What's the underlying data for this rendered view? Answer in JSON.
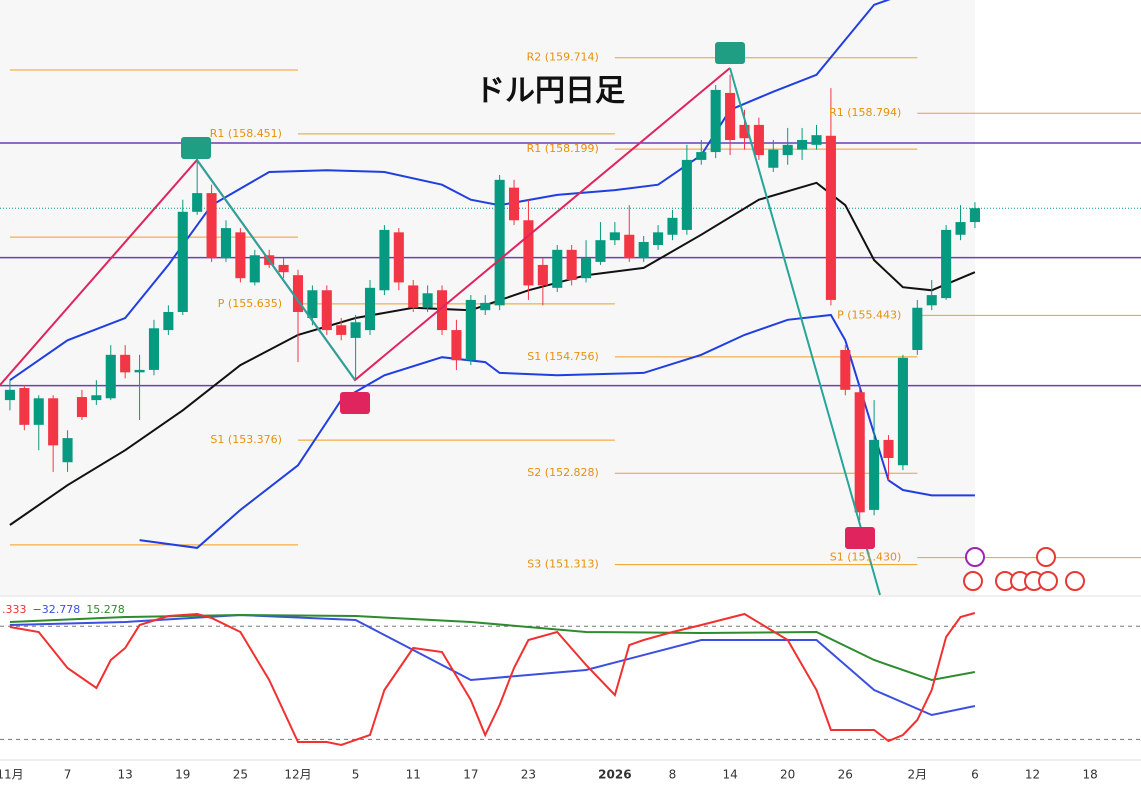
{
  "title": "ドル円日足",
  "chart_data": [
    {
      "type": "candlestick",
      "xlim": [
        -0.69,
        78.53
      ],
      "ylim": [
        150.81,
        160.67
      ],
      "up_color": "#089981",
      "down_color": "#f23645",
      "ohlc": [
        [
          154.04,
          154.37,
          153.87,
          154.21
        ],
        [
          154.24,
          154.29,
          153.54,
          153.63
        ],
        [
          153.63,
          154.12,
          153.21,
          154.07
        ],
        [
          154.07,
          154.12,
          152.85,
          153.29
        ],
        [
          153.01,
          153.54,
          152.85,
          153.41
        ],
        [
          154.09,
          154.21,
          153.71,
          153.76
        ],
        [
          154.04,
          154.37,
          153.96,
          154.12
        ],
        [
          154.07,
          154.95,
          154.04,
          154.79
        ],
        [
          154.79,
          154.95,
          154.4,
          154.5
        ],
        [
          154.5,
          154.79,
          153.71,
          154.54
        ],
        [
          154.54,
          155.37,
          154.45,
          155.23
        ],
        [
          155.2,
          155.61,
          155.12,
          155.5
        ],
        [
          155.5,
          157.36,
          155.45,
          157.16
        ],
        [
          157.16,
          158.02,
          157.11,
          157.47
        ],
        [
          157.47,
          157.61,
          156.33,
          156.39
        ],
        [
          156.39,
          157.02,
          156.33,
          156.89
        ],
        [
          156.82,
          156.89,
          155.99,
          156.06
        ],
        [
          155.99,
          156.53,
          155.94,
          156.44
        ],
        [
          156.44,
          156.53,
          156.23,
          156.28
        ],
        [
          156.28,
          156.39,
          156.06,
          156.16
        ],
        [
          156.11,
          156.2,
          154.67,
          155.5
        ],
        [
          155.4,
          155.94,
          155.28,
          155.86
        ],
        [
          155.86,
          155.94,
          155.12,
          155.2
        ],
        [
          155.28,
          155.4,
          155.03,
          155.12
        ],
        [
          155.07,
          155.45,
          154.37,
          155.33
        ],
        [
          155.2,
          156.03,
          155.12,
          155.9
        ],
        [
          155.86,
          156.94,
          155.78,
          156.86
        ],
        [
          156.82,
          156.89,
          155.86,
          155.99
        ],
        [
          155.94,
          156.03,
          155.5,
          155.57
        ],
        [
          155.57,
          155.94,
          155.5,
          155.81
        ],
        [
          155.86,
          155.94,
          155.12,
          155.2
        ],
        [
          155.2,
          155.37,
          154.54,
          154.7
        ],
        [
          154.7,
          155.78,
          154.62,
          155.7
        ],
        [
          155.53,
          155.78,
          155.45,
          155.65
        ],
        [
          155.61,
          157.77,
          155.53,
          157.69
        ],
        [
          157.56,
          157.69,
          156.94,
          157.02
        ],
        [
          157.02,
          157.36,
          155.7,
          155.94
        ],
        [
          156.28,
          156.39,
          155.61,
          155.94
        ],
        [
          155.9,
          156.61,
          155.83,
          156.53
        ],
        [
          156.53,
          156.61,
          155.94,
          156.03
        ],
        [
          156.06,
          156.69,
          155.99,
          156.39
        ],
        [
          156.33,
          156.99,
          156.28,
          156.69
        ],
        [
          156.69,
          156.99,
          156.61,
          156.82
        ],
        [
          156.78,
          157.27,
          156.33,
          156.39
        ],
        [
          156.39,
          156.76,
          156.33,
          156.66
        ],
        [
          156.61,
          156.94,
          156.53,
          156.82
        ],
        [
          156.78,
          157.19,
          156.69,
          157.06
        ],
        [
          156.86,
          158.27,
          156.78,
          158.02
        ],
        [
          158.02,
          158.35,
          157.94,
          158.15
        ],
        [
          158.15,
          159.26,
          158.05,
          159.18
        ],
        [
          159.13,
          159.43,
          158.1,
          158.35
        ],
        [
          158.6,
          158.85,
          158.19,
          158.38
        ],
        [
          158.6,
          158.72,
          158.02,
          158.1
        ],
        [
          157.89,
          158.35,
          157.82,
          158.19
        ],
        [
          158.1,
          158.55,
          157.94,
          158.27
        ],
        [
          158.19,
          158.55,
          158.02,
          158.35
        ],
        [
          158.27,
          158.6,
          158.19,
          158.43
        ],
        [
          158.42,
          159.21,
          155.61,
          155.7
        ],
        [
          154.87,
          154.95,
          154.12,
          154.21
        ],
        [
          154.17,
          154.29,
          152.05,
          152.18
        ],
        [
          152.22,
          154.04,
          152.13,
          153.38
        ],
        [
          153.38,
          153.46,
          152.71,
          153.08
        ],
        [
          152.96,
          154.79,
          152.88,
          154.74
        ],
        [
          154.87,
          155.7,
          154.79,
          155.57
        ],
        [
          155.61,
          156.03,
          155.53,
          155.78
        ],
        [
          155.73,
          156.94,
          155.7,
          156.86
        ],
        [
          156.78,
          157.27,
          156.69,
          156.99
        ],
        [
          156.99,
          157.32,
          156.89,
          157.22
        ]
      ],
      "lines": [
        {
          "color": "#111111",
          "x": [
            0,
            4,
            8,
            12,
            16,
            20,
            24,
            28,
            32,
            36,
            40,
            44,
            48,
            52,
            56,
            58,
            60,
            62,
            64,
            67
          ],
          "values": [
            151.97,
            152.63,
            153.21,
            153.87,
            154.62,
            155.12,
            155.4,
            155.57,
            155.53,
            155.86,
            156.11,
            156.23,
            156.78,
            157.36,
            157.64,
            157.27,
            156.36,
            155.91,
            155.86,
            156.16
          ]
        },
        {
          "color": "#1f3fe0",
          "x": [
            0,
            4,
            8,
            11,
            14,
            18,
            22,
            26,
            30,
            32,
            34,
            38,
            42,
            45,
            48,
            50,
            53,
            56,
            58,
            60,
            62,
            67
          ],
          "values": [
            154.37,
            155.03,
            155.4,
            156.28,
            157.27,
            157.82,
            157.85,
            157.82,
            157.61,
            157.36,
            157.27,
            157.44,
            157.52,
            157.61,
            158.1,
            158.85,
            159.15,
            159.43,
            160.01,
            160.59,
            160.76,
            160.84
          ]
        },
        {
          "color": "#1f3fe0",
          "x": [
            9,
            13,
            16,
            20,
            23,
            26,
            30,
            33,
            34,
            38,
            44,
            48,
            51,
            54,
            57,
            58,
            61,
            62,
            64,
            67
          ],
          "values": [
            151.72,
            151.59,
            152.22,
            152.96,
            154.04,
            154.45,
            154.75,
            154.67,
            154.49,
            154.45,
            154.49,
            154.79,
            155.12,
            155.37,
            155.45,
            155.03,
            152.71,
            152.55,
            152.46,
            152.46
          ]
        }
      ],
      "pivots": [
        {
          "label": null,
          "value": 159.51,
          "from": 0,
          "to": 20
        },
        {
          "label": null,
          "value": 156.74,
          "from": 0,
          "to": 20
        },
        {
          "label": null,
          "value": 151.64,
          "from": 0,
          "to": 20
        },
        {
          "label": "R1 (158.451)",
          "value": 158.451,
          "from": 20,
          "to": 42
        },
        {
          "label": "P (155.635)",
          "value": 155.635,
          "from": 20,
          "to": 42
        },
        {
          "label": "S1 (153.376)",
          "value": 153.376,
          "from": 20,
          "to": 42
        },
        {
          "label": "R2 (159.714)",
          "value": 159.714,
          "from": 42,
          "to": 63
        },
        {
          "label": "R1 (158.199)",
          "value": 158.199,
          "from": 42,
          "to": 63
        },
        {
          "label": "S1 (154.756)",
          "value": 154.756,
          "from": 42,
          "to": 63
        },
        {
          "label": "S2 (152.828)",
          "value": 152.828,
          "from": 42,
          "to": 63
        },
        {
          "label": "S3 (151.313)",
          "value": 151.313,
          "from": 42,
          "to": 63
        },
        {
          "label": "R1 (158.794)",
          "value": 158.794,
          "from": 63,
          "to": 78.53
        },
        {
          "label": "P (155.443)",
          "value": 155.443,
          "from": 63,
          "to": 78.53
        },
        {
          "label": "S1 (151.430)",
          "value": 151.43,
          "from": 63,
          "to": 78.53
        }
      ],
      "pivot_color": "#f0a020",
      "hlines": [
        {
          "value": 158.3,
          "color": "#6a3fb8",
          "style": "solid"
        },
        {
          "value": 156.4,
          "color": "#6a3fb8",
          "style": "solid"
        },
        {
          "value": 154.28,
          "color": "#6a3fb8",
          "style": "solid"
        },
        {
          "value": 157.22,
          "color": "#089981",
          "style": "dotted"
        }
      ]
    },
    {
      "type": "line",
      "xlim": [
        -0.69,
        78.53
      ],
      "ylim": [
        -109.1,
        121.25
      ],
      "levels": [
        80,
        -80
      ],
      "readouts": [
        ".333",
        "−32.778",
        "15.278"
      ],
      "series": [
        {
          "color": "#f23030",
          "x": [
            0,
            2,
            4,
            6,
            7,
            8,
            9,
            11,
            13,
            14,
            16,
            18,
            20,
            22,
            23,
            25,
            26,
            28,
            30,
            32,
            33,
            34,
            35,
            36,
            38,
            40,
            42,
            43,
            44,
            46,
            48,
            51,
            54,
            56,
            57,
            59,
            60,
            61,
            62,
            63,
            64,
            65,
            66,
            67
          ],
          "values": [
            78.86,
            71.8,
            20.93,
            -7.33,
            32.23,
            49.19,
            81.69,
            94.41,
            97.23,
            91.58,
            71.8,
            3.97,
            -83.63,
            -83.63,
            -87.87,
            -73.74,
            -10.16,
            49.19,
            43.54,
            -24.29,
            -73.74,
            -31.35,
            20.93,
            60.49,
            71.8,
            25.17,
            -17.22,
            53.43,
            60.49,
            71.8,
            81.69,
            97.23,
            60.49,
            -10.16,
            -66.68,
            -66.68,
            -66.68,
            -82.22,
            -73.74,
            -52.55,
            -10.16,
            64.73,
            92.99,
            98.64
          ]
        },
        {
          "color": "#3b4fe0",
          "x": [
            0,
            8,
            16,
            24,
            32,
            40,
            48,
            56,
            60,
            64,
            67
          ],
          "values": [
            81.69,
            85.93,
            95.82,
            88.75,
            3.97,
            18.11,
            60.49,
            60.49,
            -10.16,
            -45.48,
            -32.778
          ]
        },
        {
          "color": "#2e8b2e",
          "x": [
            0,
            8,
            16,
            24,
            32,
            40,
            48,
            56,
            60,
            64,
            67
          ],
          "values": [
            85.93,
            93.0,
            95.82,
            94.41,
            85.93,
            71.8,
            70.39,
            71.8,
            32.23,
            3.97,
            15.278
          ]
        }
      ],
      "xticks": [
        {
          "value": 0,
          "label": "11月"
        },
        {
          "value": 4,
          "label": "7"
        },
        {
          "value": 8,
          "label": "13"
        },
        {
          "value": 12,
          "label": "19"
        },
        {
          "value": 16,
          "label": "25"
        },
        {
          "value": 20,
          "label": "12月"
        },
        {
          "value": 24,
          "label": "5"
        },
        {
          "value": 28,
          "label": "11"
        },
        {
          "value": 32,
          "label": "17"
        },
        {
          "value": 36,
          "label": "23"
        },
        {
          "value": 42,
          "label": "2026"
        },
        {
          "value": 46,
          "label": "8"
        },
        {
          "value": 50,
          "label": "14"
        },
        {
          "value": 54,
          "label": "20"
        },
        {
          "value": 58,
          "label": "26"
        },
        {
          "value": 63,
          "label": "2月"
        },
        {
          "value": 67,
          "label": "6"
        },
        {
          "value": 71,
          "label": "12"
        },
        {
          "value": 75,
          "label": "18"
        }
      ]
    }
  ]
}
